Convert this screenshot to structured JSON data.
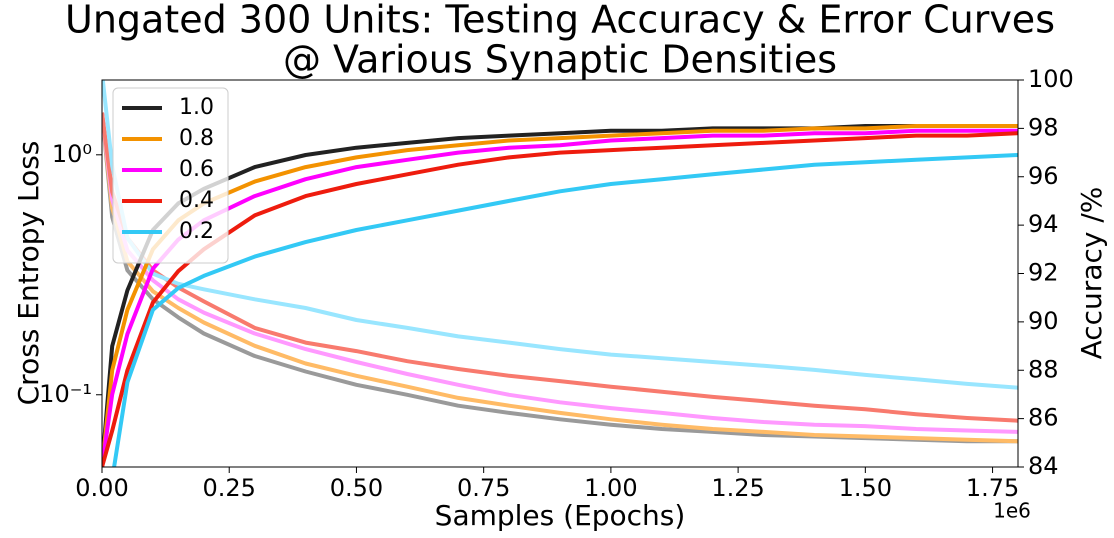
{
  "chart_data": {
    "type": "line",
    "title": "Ungated 300 Units: Testing Accuracy & Error Curves",
    "subtitle": "@ Various Synaptic Densities",
    "xlabel": "Samples (Epochs)",
    "x_offset_label": "1e6",
    "ylabel": "Cross Entropy Loss",
    "y2label": "Accuracy /%",
    "yscale": "log",
    "legend": "upper left",
    "grid": false,
    "x": [
      0,
      20000,
      50000,
      100000,
      150000,
      200000,
      300000,
      400000,
      500000,
      600000,
      700000,
      800000,
      900000,
      1000000,
      1100000,
      1200000,
      1300000,
      1400000,
      1500000,
      1600000,
      1700000,
      1800000
    ],
    "xlim": [
      0,
      1800000
    ],
    "xticks": [
      {
        "value": 0,
        "label": "0.00"
      },
      {
        "value": 250000,
        "label": "0.25"
      },
      {
        "value": 500000,
        "label": "0.50"
      },
      {
        "value": 750000,
        "label": "0.75"
      },
      {
        "value": 1000000,
        "label": "1.00"
      },
      {
        "value": 1250000,
        "label": "1.25"
      },
      {
        "value": 1500000,
        "label": "1.50"
      },
      {
        "value": 1750000,
        "label": "1.75"
      }
    ],
    "ylim": [
      0.05,
      2.05
    ],
    "yticks": [
      {
        "value": 0.1,
        "label": "10⁻¹"
      },
      {
        "value": 1,
        "label": "10⁰"
      }
    ],
    "y2lim": [
      84,
      100
    ],
    "y2ticks": [
      84,
      86,
      88,
      90,
      92,
      94,
      96,
      98,
      100
    ],
    "series": [
      {
        "name": "1.0",
        "color": "#222222",
        "axis": "y2",
        "values": [
          84,
          89,
          91.3,
          93.8,
          94.9,
          95.5,
          96.4,
          96.9,
          97.2,
          97.4,
          97.6,
          97.7,
          97.8,
          97.9,
          97.9,
          98.0,
          98.0,
          98.0,
          98.1,
          98.1,
          98.1,
          98.1
        ]
      },
      {
        "name": "0.8",
        "color": "#f39200",
        "axis": "y2",
        "values": [
          84,
          88,
          90.5,
          93.0,
          94.2,
          94.9,
          95.8,
          96.4,
          96.8,
          97.1,
          97.3,
          97.5,
          97.6,
          97.7,
          97.8,
          97.9,
          97.9,
          98.0,
          98.0,
          98.1,
          98.1,
          98.1
        ]
      },
      {
        "name": "0.6",
        "color": "#ff00ff",
        "axis": "y2",
        "values": [
          84,
          87,
          89.5,
          92.2,
          93.4,
          94.2,
          95.2,
          95.9,
          96.4,
          96.7,
          97.0,
          97.2,
          97.3,
          97.5,
          97.6,
          97.7,
          97.7,
          97.8,
          97.8,
          97.9,
          97.9,
          97.9
        ]
      },
      {
        "name": "0.4",
        "color": "#ee1c0e",
        "axis": "y2",
        "values": [
          84,
          85.5,
          88,
          90.8,
          92.1,
          93.0,
          94.4,
          95.2,
          95.7,
          96.1,
          96.5,
          96.8,
          97.0,
          97.1,
          97.2,
          97.3,
          97.4,
          97.5,
          97.6,
          97.7,
          97.7,
          97.8
        ]
      },
      {
        "name": "0.2",
        "color": "#33c9f5",
        "axis": "y2",
        "values": [
          82,
          83.5,
          87.5,
          90.5,
          91.4,
          91.9,
          92.7,
          93.3,
          93.8,
          94.2,
          94.6,
          95.0,
          95.4,
          95.7,
          95.9,
          96.1,
          96.3,
          96.5,
          96.6,
          96.7,
          96.8,
          96.9
        ]
      }
    ],
    "loss_series": [
      {
        "color": "#9a9a9a",
        "axis": "y",
        "values": [
          1.5,
          0.55,
          0.33,
          0.25,
          0.21,
          0.18,
          0.145,
          0.125,
          0.11,
          0.1,
          0.09,
          0.084,
          0.079,
          0.075,
          0.072,
          0.07,
          0.068,
          0.067,
          0.066,
          0.065,
          0.064,
          0.064
        ]
      },
      {
        "color": "#ffbb66",
        "axis": "y",
        "values": [
          1.5,
          0.6,
          0.36,
          0.27,
          0.23,
          0.2,
          0.16,
          0.135,
          0.12,
          0.108,
          0.097,
          0.09,
          0.084,
          0.079,
          0.075,
          0.072,
          0.07,
          0.068,
          0.067,
          0.066,
          0.065,
          0.064
        ]
      },
      {
        "color": "#ff99ff",
        "axis": "y",
        "values": [
          1.5,
          0.65,
          0.4,
          0.3,
          0.25,
          0.22,
          0.18,
          0.155,
          0.137,
          0.122,
          0.11,
          0.1,
          0.093,
          0.088,
          0.084,
          0.08,
          0.077,
          0.075,
          0.074,
          0.072,
          0.071,
          0.07
        ]
      },
      {
        "color": "#f87a6e",
        "axis": "y",
        "values": [
          1.5,
          0.7,
          0.45,
          0.33,
          0.28,
          0.245,
          0.19,
          0.165,
          0.152,
          0.138,
          0.128,
          0.12,
          0.114,
          0.108,
          0.103,
          0.098,
          0.094,
          0.09,
          0.087,
          0.083,
          0.08,
          0.078
        ]
      },
      {
        "color": "#99e6ff",
        "axis": "y",
        "values": [
          2.2,
          0.9,
          0.45,
          0.32,
          0.29,
          0.275,
          0.25,
          0.23,
          0.205,
          0.19,
          0.175,
          0.165,
          0.155,
          0.147,
          0.142,
          0.137,
          0.132,
          0.127,
          0.121,
          0.116,
          0.111,
          0.107
        ]
      }
    ]
  }
}
